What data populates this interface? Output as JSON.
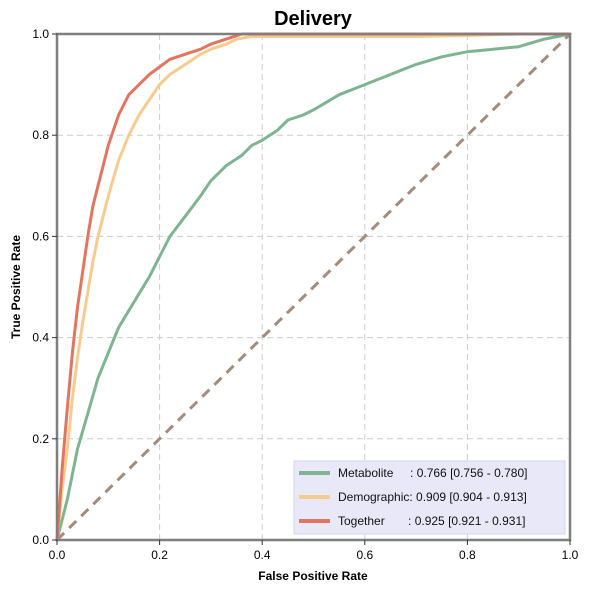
{
  "chart_data": {
    "type": "line",
    "title": "Delivery",
    "xlabel": "False Positive Rate",
    "ylabel": "True Positive Rate",
    "xlim": [
      0,
      1
    ],
    "ylim": [
      0,
      1
    ],
    "xticks": [
      "0.0",
      "0.2",
      "0.4",
      "0.6",
      "0.8",
      "1.0"
    ],
    "yticks": [
      "0.0",
      "0.2",
      "0.4",
      "0.6",
      "0.8",
      "1.0"
    ],
    "grid": true,
    "legend_position": "lower-right",
    "reference_line": {
      "x": [
        0,
        1
      ],
      "y": [
        0,
        1
      ],
      "color": "#a48b7b",
      "style": "dashed"
    },
    "series": [
      {
        "name": "Metabolite",
        "legend_label": "Metabolite     : 0.766 [0.756 - 0.780]",
        "color": "#7fb493",
        "x": [
          0,
          0.01,
          0.02,
          0.03,
          0.04,
          0.06,
          0.08,
          0.1,
          0.12,
          0.15,
          0.18,
          0.2,
          0.22,
          0.25,
          0.28,
          0.3,
          0.33,
          0.36,
          0.38,
          0.4,
          0.43,
          0.45,
          0.48,
          0.5,
          0.55,
          0.6,
          0.65,
          0.7,
          0.75,
          0.8,
          0.85,
          0.9,
          0.95,
          1.0
        ],
        "y": [
          0,
          0.04,
          0.08,
          0.13,
          0.18,
          0.25,
          0.32,
          0.37,
          0.42,
          0.47,
          0.52,
          0.56,
          0.6,
          0.64,
          0.68,
          0.71,
          0.74,
          0.76,
          0.78,
          0.79,
          0.81,
          0.83,
          0.84,
          0.85,
          0.88,
          0.9,
          0.92,
          0.94,
          0.955,
          0.965,
          0.97,
          0.975,
          0.99,
          1.0
        ]
      },
      {
        "name": "Demographic",
        "legend_label": "Demographic: 0.909 [0.904 - 0.913]",
        "color": "#f5cc8f",
        "x": [
          0,
          0.005,
          0.01,
          0.02,
          0.03,
          0.04,
          0.05,
          0.06,
          0.07,
          0.08,
          0.09,
          0.1,
          0.12,
          0.14,
          0.16,
          0.18,
          0.2,
          0.22,
          0.25,
          0.28,
          0.3,
          0.33,
          0.35,
          0.38,
          0.4,
          0.5,
          0.6,
          0.7,
          0.8,
          0.9,
          1.0
        ],
        "y": [
          0,
          0.05,
          0.1,
          0.18,
          0.28,
          0.36,
          0.43,
          0.49,
          0.55,
          0.6,
          0.64,
          0.68,
          0.75,
          0.8,
          0.84,
          0.87,
          0.9,
          0.92,
          0.94,
          0.96,
          0.97,
          0.98,
          0.99,
          0.995,
          0.995,
          0.995,
          0.995,
          0.995,
          0.997,
          1.0,
          1.0
        ]
      },
      {
        "name": "Together",
        "legend_label": "Together       : 0.925 [0.921 - 0.931]",
        "color": "#e27560",
        "x": [
          0,
          0.005,
          0.01,
          0.02,
          0.03,
          0.04,
          0.05,
          0.06,
          0.07,
          0.08,
          0.09,
          0.1,
          0.12,
          0.14,
          0.16,
          0.18,
          0.2,
          0.22,
          0.25,
          0.28,
          0.3,
          0.33,
          0.36,
          0.4,
          0.5,
          0.6,
          0.7,
          0.8,
          0.9,
          1.0
        ],
        "y": [
          0,
          0.07,
          0.14,
          0.26,
          0.37,
          0.46,
          0.53,
          0.6,
          0.66,
          0.7,
          0.74,
          0.78,
          0.84,
          0.88,
          0.9,
          0.92,
          0.935,
          0.95,
          0.96,
          0.97,
          0.98,
          0.99,
          1.0,
          1.0,
          1.0,
          1.0,
          1.0,
          1.0,
          1.0,
          1.0
        ]
      }
    ]
  }
}
